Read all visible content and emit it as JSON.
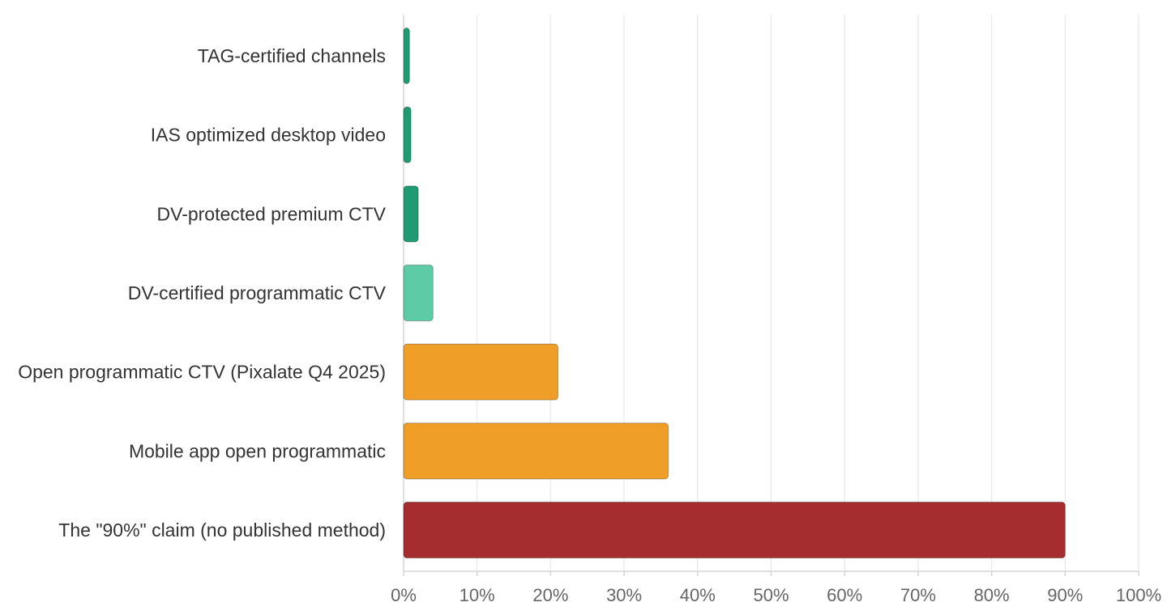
{
  "chart_data": {
    "type": "bar",
    "orientation": "horizontal",
    "categories": [
      "TAG-certified channels",
      "IAS optimized desktop video",
      "DV-protected premium CTV",
      "DV-certified programmatic CTV",
      "Open programmatic CTV (Pixalate Q4 2025)",
      "Mobile app open programmatic",
      "The \"90%\" claim (no published method)"
    ],
    "values": [
      0.8,
      1.0,
      2.0,
      4.0,
      21.0,
      36.0,
      90.0
    ],
    "colors": [
      "#1f9a73",
      "#1f9a73",
      "#1f9a73",
      "#5ecba7",
      "#ef9e28",
      "#ef9e28",
      "#a52c2f"
    ],
    "xlim": [
      0,
      100
    ],
    "x_ticks": [
      "0%",
      "10%",
      "20%",
      "30%",
      "40%",
      "50%",
      "60%",
      "70%",
      "80%",
      "90%",
      "100%"
    ],
    "title": "",
    "xlabel": "",
    "ylabel": "",
    "grid": true,
    "legend": false
  }
}
